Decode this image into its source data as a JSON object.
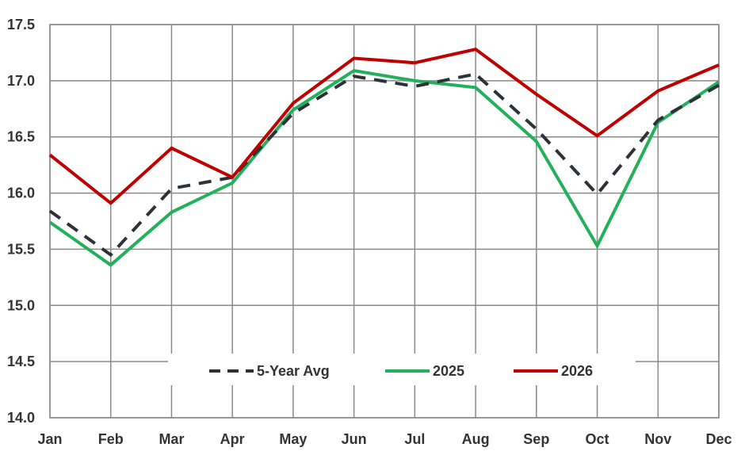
{
  "chart_data": {
    "type": "line",
    "title": "",
    "xlabel": "",
    "ylabel": "",
    "categories": [
      "Jan",
      "Feb",
      "Mar",
      "Apr",
      "May",
      "Jun",
      "Jul",
      "Aug",
      "Sep",
      "Oct",
      "Nov",
      "Dec"
    ],
    "ylim": [
      14.0,
      17.5
    ],
    "yticks": [
      "14.0",
      "14.5",
      "15.0",
      "15.5",
      "16.0",
      "16.5",
      "17.0",
      "17.5"
    ],
    "grid": true,
    "legend_position": "bottom-center",
    "series": [
      {
        "name": "5-Year Avg",
        "color": "#2b3238",
        "style": "dashed",
        "values": [
          15.84,
          15.45,
          16.04,
          16.14,
          16.71,
          17.04,
          16.95,
          17.06,
          16.57,
          15.99,
          16.65,
          16.96
        ]
      },
      {
        "name": "2025",
        "color": "#22b05a",
        "style": "solid",
        "values": [
          15.74,
          15.36,
          15.83,
          16.09,
          16.74,
          17.09,
          17.0,
          16.94,
          16.46,
          15.53,
          16.63,
          16.99
        ]
      },
      {
        "name": "2026",
        "color": "#c00000",
        "style": "solid",
        "values": [
          16.34,
          15.91,
          16.4,
          16.14,
          16.8,
          17.2,
          17.16,
          17.28,
          16.88,
          16.51,
          16.91,
          17.14
        ]
      }
    ]
  }
}
